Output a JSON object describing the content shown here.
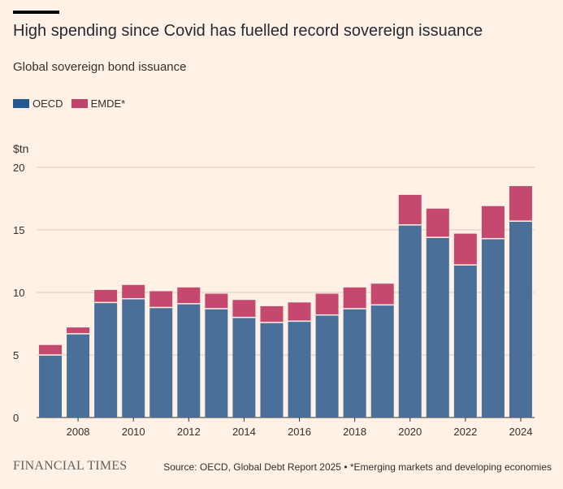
{
  "header": {
    "title": "High spending since Covid has fuelled record sovereign issuance",
    "subtitle": "Global sovereign bond issuance"
  },
  "legend": [
    {
      "label": "OECD",
      "color": "#255891"
    },
    {
      "label": "EMDE*",
      "color": "#c0446a"
    }
  ],
  "footer": {
    "logo": "FINANCIAL TIMES",
    "source": "Source: OECD, Global Debt Report 2025 • *Emerging markets and developing economies"
  },
  "chart_data": {
    "type": "bar",
    "stacked": true,
    "unit_label": "$tn",
    "categories": [
      "2007",
      "2008",
      "2009",
      "2010",
      "2011",
      "2012",
      "2013",
      "2014",
      "2015",
      "2016",
      "2017",
      "2018",
      "2019",
      "2020",
      "2021",
      "2022",
      "2023",
      "2024"
    ],
    "x_tick_labels": [
      "2008",
      "2010",
      "2012",
      "2014",
      "2016",
      "2018",
      "2020",
      "2022",
      "2024"
    ],
    "series": [
      {
        "name": "OECD",
        "color": "#4a709a",
        "values": [
          5.0,
          6.7,
          9.2,
          9.5,
          8.8,
          9.1,
          8.7,
          8.0,
          7.6,
          7.7,
          8.2,
          8.7,
          9.0,
          15.4,
          14.4,
          12.2,
          14.3,
          15.7
        ]
      },
      {
        "name": "EMDE*",
        "color": "#c5486e",
        "values": [
          0.8,
          0.5,
          1.0,
          1.1,
          1.3,
          1.3,
          1.2,
          1.4,
          1.3,
          1.5,
          1.7,
          1.7,
          1.7,
          2.4,
          2.3,
          2.5,
          2.6,
          2.8
        ]
      }
    ],
    "ylim": [
      0,
      20
    ],
    "y_ticks": [
      0,
      5,
      10,
      15,
      20
    ],
    "grid": true
  }
}
